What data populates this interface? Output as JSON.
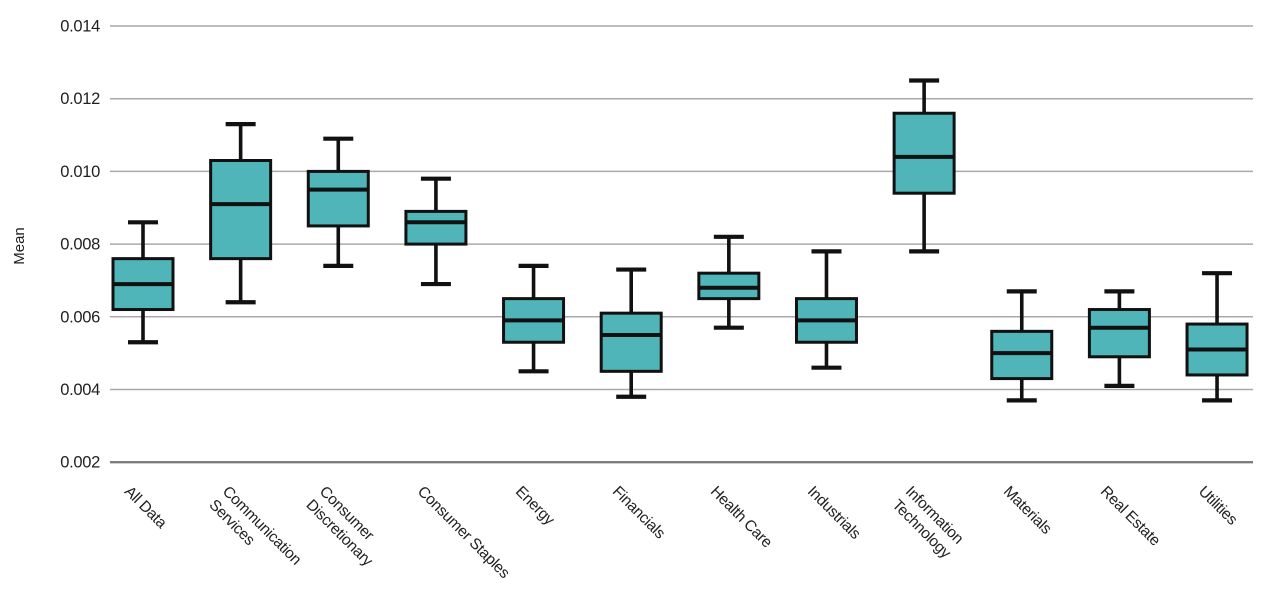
{
  "chart_data": {
    "type": "boxplot",
    "title": "",
    "xlabel": "",
    "ylabel": "Mean",
    "ylim": [
      0.002,
      0.014
    ],
    "yticks": [
      0.014,
      0.012,
      0.01,
      0.008,
      0.006,
      0.004,
      0.002
    ],
    "ytick_labels": [
      "0.014",
      "0.012",
      "0.010",
      "0.008",
      "0.006",
      "0.004",
      "0.002"
    ],
    "grid": "horizontal",
    "legend": "none",
    "colors": {
      "box_fill": "#4fb5b8",
      "line": "#111111",
      "gridline": "#a9a9a9",
      "axis_line": "#7d7d7d",
      "text": "#1f1f1f",
      "background": "#ffffff"
    },
    "categories": [
      "All Data",
      "Communication Services",
      "Consumer Discretionary",
      "Consumer Staples",
      "Energy",
      "Financials",
      "Health Care",
      "Industrials",
      "Information Technology",
      "Materials",
      "Real Estate",
      "Utilities"
    ],
    "category_label_lines": [
      [
        "All Data"
      ],
      [
        "Communication",
        "Services"
      ],
      [
        "Consumer",
        "Discretionary"
      ],
      [
        "Consumer Staples"
      ],
      [
        "Energy"
      ],
      [
        "Financials"
      ],
      [
        "Health Care"
      ],
      [
        "Industrials"
      ],
      [
        "Information",
        "Technology"
      ],
      [
        "Materials"
      ],
      [
        "Real Estate"
      ],
      [
        "Utilities"
      ]
    ],
    "series": [
      {
        "name": "All Data",
        "whisker_low": 0.0053,
        "q1": 0.0062,
        "median": 0.0069,
        "q3": 0.0076,
        "whisker_high": 0.0086
      },
      {
        "name": "Communication Services",
        "whisker_low": 0.0064,
        "q1": 0.0076,
        "median": 0.0091,
        "q3": 0.0103,
        "whisker_high": 0.0113
      },
      {
        "name": "Consumer Discretionary",
        "whisker_low": 0.0074,
        "q1": 0.0085,
        "median": 0.0095,
        "q3": 0.01,
        "whisker_high": 0.0109
      },
      {
        "name": "Consumer Staples",
        "whisker_low": 0.0069,
        "q1": 0.008,
        "median": 0.0086,
        "q3": 0.0089,
        "whisker_high": 0.0098
      },
      {
        "name": "Energy",
        "whisker_low": 0.0045,
        "q1": 0.0053,
        "median": 0.0059,
        "q3": 0.0065,
        "whisker_high": 0.0074
      },
      {
        "name": "Financials",
        "whisker_low": 0.0038,
        "q1": 0.0045,
        "median": 0.0055,
        "q3": 0.0061,
        "whisker_high": 0.0073
      },
      {
        "name": "Health Care",
        "whisker_low": 0.0057,
        "q1": 0.0065,
        "median": 0.0068,
        "q3": 0.0072,
        "whisker_high": 0.0082
      },
      {
        "name": "Industrials",
        "whisker_low": 0.0046,
        "q1": 0.0053,
        "median": 0.0059,
        "q3": 0.0065,
        "whisker_high": 0.0078
      },
      {
        "name": "Information Technology",
        "whisker_low": 0.0078,
        "q1": 0.0094,
        "median": 0.0104,
        "q3": 0.0116,
        "whisker_high": 0.0125
      },
      {
        "name": "Materials",
        "whisker_low": 0.0037,
        "q1": 0.0043,
        "median": 0.005,
        "q3": 0.0056,
        "whisker_high": 0.0067
      },
      {
        "name": "Real Estate",
        "whisker_low": 0.0041,
        "q1": 0.0049,
        "median": 0.0057,
        "q3": 0.0062,
        "whisker_high": 0.0067
      },
      {
        "name": "Utilities",
        "whisker_low": 0.0037,
        "q1": 0.0044,
        "median": 0.0051,
        "q3": 0.0058,
        "whisker_high": 0.0072
      }
    ]
  }
}
